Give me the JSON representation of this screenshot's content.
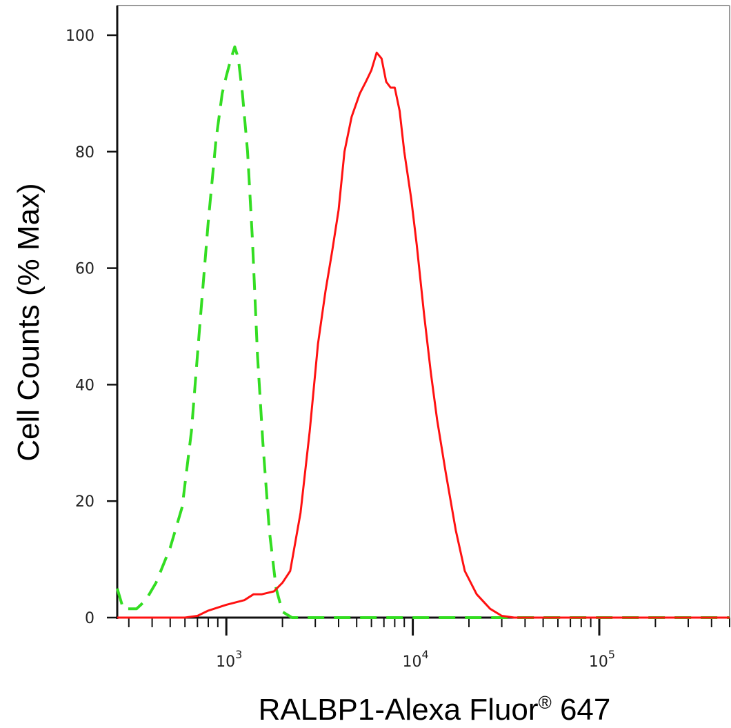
{
  "chart_data": {
    "type": "histogram_line",
    "title": "",
    "xlabel": "RALBP1-Alexa Fluor",
    "xlabel_superscript": "®",
    "xlabel_suffix": " 647",
    "ylabel": "Cell Counts (% Max)",
    "x_scale": "log",
    "xlim": [
      260,
      500000
    ],
    "ylim": [
      0,
      100
    ],
    "y_ticks": [
      0,
      20,
      40,
      60,
      80,
      100
    ],
    "y_tick_labels": [
      "0",
      "20",
      "40",
      "60",
      "80",
      "100"
    ],
    "x_ticks": [
      1000,
      10000,
      100000
    ],
    "x_tick_base": "10",
    "x_tick_exponents": [
      "3",
      "4",
      "5"
    ],
    "grid": false,
    "legend": "none",
    "series": [
      {
        "color": "#33dd22",
        "style": "dashed",
        "points": [
          [
            260,
            5
          ],
          [
            280,
            1.5
          ],
          [
            300,
            1.5
          ],
          [
            330,
            1.5
          ],
          [
            370,
            3
          ],
          [
            420,
            6
          ],
          [
            500,
            12
          ],
          [
            580,
            19
          ],
          [
            650,
            32
          ],
          [
            720,
            50
          ],
          [
            800,
            68
          ],
          [
            880,
            82
          ],
          [
            950,
            90
          ],
          [
            1000,
            93
          ],
          [
            1060,
            96
          ],
          [
            1110,
            98
          ],
          [
            1160,
            96
          ],
          [
            1220,
            90
          ],
          [
            1300,
            80
          ],
          [
            1380,
            65
          ],
          [
            1470,
            45
          ],
          [
            1570,
            30
          ],
          [
            1700,
            15
          ],
          [
            1850,
            5
          ],
          [
            2000,
            1
          ],
          [
            2250,
            0
          ],
          [
            2600,
            0
          ],
          [
            3000,
            0
          ],
          [
            10000,
            0
          ],
          [
            100000,
            0
          ],
          [
            500000,
            0
          ]
        ]
      },
      {
        "color": "#ff1111",
        "style": "solid",
        "points": [
          [
            260,
            0
          ],
          [
            600,
            0
          ],
          [
            700,
            0.3
          ],
          [
            800,
            1.2
          ],
          [
            1000,
            2.2
          ],
          [
            1250,
            3
          ],
          [
            1400,
            4
          ],
          [
            1550,
            4
          ],
          [
            1800,
            4.5
          ],
          [
            2000,
            6
          ],
          [
            2200,
            8
          ],
          [
            2500,
            18
          ],
          [
            2800,
            32
          ],
          [
            3100,
            47
          ],
          [
            3400,
            56
          ],
          [
            3700,
            63
          ],
          [
            4000,
            70
          ],
          [
            4300,
            80
          ],
          [
            4700,
            86
          ],
          [
            5200,
            90
          ],
          [
            5600,
            92
          ],
          [
            6000,
            94
          ],
          [
            6400,
            97
          ],
          [
            6800,
            96
          ],
          [
            7200,
            92
          ],
          [
            7600,
            91
          ],
          [
            8000,
            91
          ],
          [
            8500,
            87
          ],
          [
            9000,
            80
          ],
          [
            9800,
            72
          ],
          [
            10500,
            64
          ],
          [
            11500,
            52
          ],
          [
            12500,
            42
          ],
          [
            13500,
            34
          ],
          [
            15000,
            25
          ],
          [
            17000,
            15
          ],
          [
            19000,
            8
          ],
          [
            22000,
            4
          ],
          [
            26000,
            1.5
          ],
          [
            30000,
            0.3
          ],
          [
            35000,
            0
          ],
          [
            100000,
            0
          ],
          [
            500000,
            0
          ]
        ]
      }
    ]
  }
}
